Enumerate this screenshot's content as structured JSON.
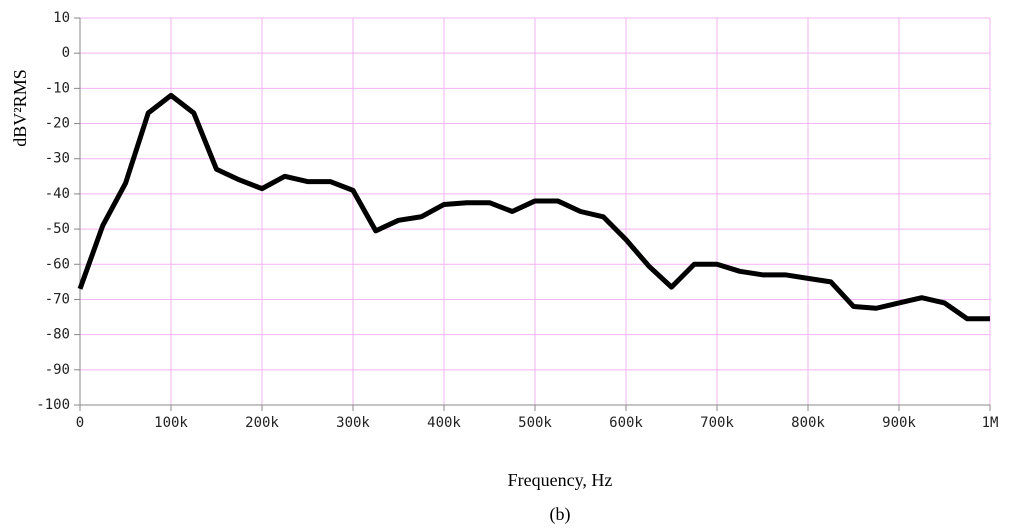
{
  "chart_data": {
    "type": "line",
    "x_label": "Frequency, Hz",
    "y_label": "dBV²RMS",
    "caption": "(b)",
    "x": [
      0,
      25000,
      50000,
      75000,
      100000,
      125000,
      150000,
      175000,
      200000,
      225000,
      250000,
      275000,
      300000,
      325000,
      350000,
      375000,
      400000,
      425000,
      450000,
      475000,
      500000,
      525000,
      550000,
      575000,
      600000,
      625000,
      650000,
      675000,
      700000,
      725000,
      750000,
      775000,
      800000,
      825000,
      850000,
      875000,
      900000,
      925000,
      950000,
      975000,
      1000000
    ],
    "series": [
      {
        "color": "#000000",
        "values": [
          -67,
          -49,
          -37,
          -17,
          -12,
          -17,
          -33,
          -36,
          -38.5,
          -35,
          -36.5,
          -36.5,
          -39,
          -50.5,
          -47.5,
          -46.5,
          -43,
          -42.5,
          -42.5,
          -45,
          -42,
          -42,
          -45,
          -46.5,
          -53,
          -60.5,
          -66.5,
          -60,
          -60,
          -62,
          -63,
          -63,
          -64,
          -65,
          -72,
          -72.5,
          -71,
          -69.5,
          -71,
          -75.5,
          -75.5
        ]
      }
    ],
    "xlim": [
      0,
      1000000
    ],
    "xticks": [
      0,
      {
        "value": 100000,
        "label": "100k"
      },
      {
        "value": 200000,
        "label": "200k"
      },
      {
        "value": 300000,
        "label": "300k"
      },
      {
        "value": 400000,
        "label": "400k"
      },
      {
        "value": 500000,
        "label": "500k"
      },
      {
        "value": 600000,
        "label": "600k"
      },
      {
        "value": 700000,
        "label": "700k"
      },
      {
        "value": 800000,
        "label": "800k"
      },
      {
        "value": 900000,
        "label": "900k"
      },
      {
        "value": 1000000,
        "label": "1M"
      }
    ],
    "ylim": [
      -100,
      10
    ],
    "yticks": [
      10,
      0,
      -10,
      -20,
      -30,
      -40,
      -50,
      -60,
      -70,
      -80,
      -90,
      -100
    ],
    "grid": true,
    "grid_color": "#f2b3f2"
  }
}
